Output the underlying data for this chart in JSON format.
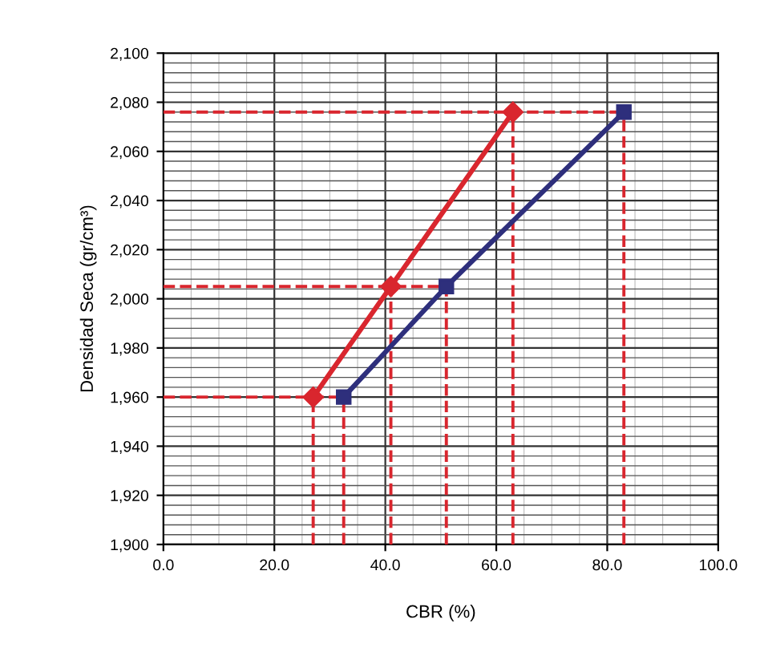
{
  "chart_data": {
    "type": "line",
    "xlabel": "CBR (%)",
    "ylabel": "Densidad Seca (gr/cm³)",
    "series": [
      {
        "color": "#d9262e",
        "marker": "diamond",
        "x": [
          27,
          41,
          63
        ],
        "values": [
          1960,
          2005,
          2076
        ]
      },
      {
        "color": "#2e2f7c",
        "marker": "square",
        "x": [
          32.5,
          51,
          83
        ],
        "values": [
          1960,
          2005,
          2076
        ]
      }
    ],
    "xlim": [
      0,
      100
    ],
    "xticks": [
      {
        "value": 0,
        "label": "0.0"
      },
      {
        "value": 20,
        "label": "20.0"
      },
      {
        "value": 40,
        "label": "40.0"
      },
      {
        "value": 60,
        "label": "60.0"
      },
      {
        "value": 80,
        "label": "80.0"
      },
      {
        "value": 100,
        "label": "100.0"
      }
    ],
    "ylim": [
      1900,
      2100
    ],
    "yticks": [
      {
        "value": 1900,
        "label": "1,900"
      },
      {
        "value": 1920,
        "label": "1,920"
      },
      {
        "value": 1940,
        "label": "1,940"
      },
      {
        "value": 1960,
        "label": "1,960"
      },
      {
        "value": 1980,
        "label": "1,980"
      },
      {
        "value": 2000,
        "label": "2,000"
      },
      {
        "value": 2020,
        "label": "2,020"
      },
      {
        "value": 2040,
        "label": "2,040"
      },
      {
        "value": 2060,
        "label": "2,060"
      },
      {
        "value": 2080,
        "label": "2,080"
      },
      {
        "value": 2100,
        "label": "2,100"
      }
    ],
    "ref_lines": [
      {
        "axis": "y",
        "value": 1960,
        "color": "#d9262e",
        "line_style": "dashed"
      },
      {
        "axis": "y",
        "value": 2005,
        "color": "#d9262e",
        "line_style": "dashed"
      },
      {
        "axis": "y",
        "value": 2076,
        "color": "#d9262e",
        "line_style": "dashed"
      },
      {
        "axis": "x",
        "value": 27,
        "color": "#d9262e",
        "line_style": "dashed"
      },
      {
        "axis": "x",
        "value": 32.5,
        "color": "#d9262e",
        "line_style": "dashed"
      },
      {
        "axis": "x",
        "value": 41,
        "color": "#d9262e",
        "line_style": "dashed"
      },
      {
        "axis": "x",
        "value": 51,
        "color": "#d9262e",
        "line_style": "dashed"
      },
      {
        "axis": "x",
        "value": 63,
        "color": "#d9262e",
        "line_style": "dashed"
      },
      {
        "axis": "x",
        "value": 83,
        "color": "#d9262e",
        "line_style": "dashed"
      }
    ],
    "grid": true,
    "legend": false
  }
}
